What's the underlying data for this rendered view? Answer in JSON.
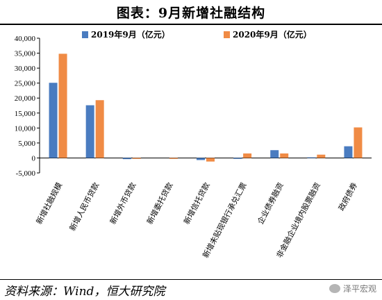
{
  "title": "图表：9月新增社融结构",
  "source": "资料来源：Wind，恒大研究院",
  "watermark": "泽平宏观",
  "colors": {
    "series_2019": "#4a7cc0",
    "series_2020": "#f08b45"
  },
  "chart_data": {
    "type": "bar",
    "categories": [
      "新增社融规模",
      "新增人民币贷款",
      "新增外币贷款",
      "新增委托贷款",
      "新增信托贷款",
      "新增未贴现银行承兑汇票",
      "企业债券融资",
      "非金融企业境内股票融资",
      "政府债券"
    ],
    "series": [
      {
        "name": "2019年9月（亿元）",
        "values": [
          25100,
          17600,
          -400,
          0,
          -700,
          -300,
          2600,
          200,
          3900
        ]
      },
      {
        "name": "2020年9月（亿元）",
        "values": [
          34800,
          19300,
          -300,
          -300,
          -1200,
          1500,
          1500,
          1100,
          10200
        ]
      }
    ],
    "ylim": [
      -5000,
      40000
    ],
    "yticks": [
      "-5,000",
      "0",
      "5,000",
      "10,000",
      "15,000",
      "20,000",
      "25,000",
      "30,000",
      "35,000",
      "40,000"
    ],
    "ytick_values": [
      -5000,
      0,
      5000,
      10000,
      15000,
      20000,
      25000,
      30000,
      35000,
      40000
    ],
    "legend": "top",
    "grid": false
  }
}
